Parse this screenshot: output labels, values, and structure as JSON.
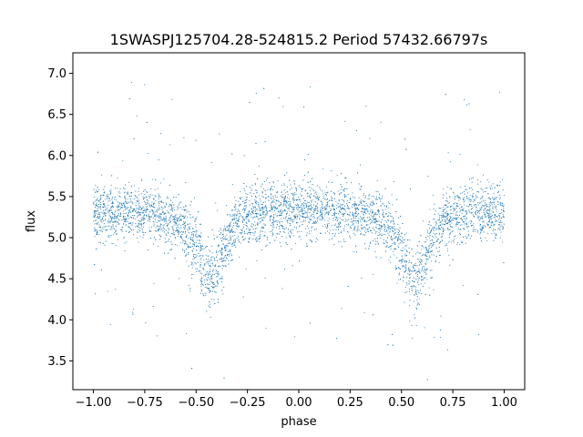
{
  "chart_data": {
    "type": "scatter",
    "title": "1SWASPJ125704.28-524815.2 Period 57432.66797s",
    "xlabel": "phase",
    "ylabel": "flux",
    "xlim": [
      -1.1,
      1.1
    ],
    "ylim": [
      3.15,
      7.25
    ],
    "xticks": [
      "−1.00",
      "−0.75",
      "−0.50",
      "−0.25",
      "0.00",
      "0.25",
      "0.50",
      "0.75",
      "1.00"
    ],
    "xtick_values": [
      -1.0,
      -0.75,
      -0.5,
      -0.25,
      0.0,
      0.25,
      0.5,
      0.75,
      1.0
    ],
    "yticks": [
      "3.5",
      "4.0",
      "4.5",
      "5.0",
      "5.5",
      "6.0",
      "6.5",
      "7.0"
    ],
    "ytick_values": [
      3.5,
      4.0,
      4.5,
      5.0,
      5.5,
      6.0,
      6.5,
      7.0
    ],
    "grid": false,
    "marker_color": "#1f77b4",
    "series": [
      {
        "x": [
          -1.0,
          -0.9,
          -0.8,
          -0.7,
          -0.6,
          -0.55,
          -0.5,
          -0.45,
          -0.43,
          -0.4,
          -0.35,
          -0.3,
          -0.2,
          -0.1,
          0.0,
          0.1,
          0.2,
          0.3,
          0.4,
          0.45,
          0.5,
          0.55,
          0.57,
          0.6,
          0.65,
          0.7,
          0.8,
          0.9,
          1.0
        ],
        "y": [
          5.3,
          5.3,
          5.3,
          5.3,
          5.2,
          5.1,
          4.85,
          4.55,
          4.45,
          4.6,
          4.95,
          5.2,
          5.3,
          5.3,
          5.35,
          5.3,
          5.3,
          5.3,
          5.2,
          5.1,
          4.85,
          4.5,
          4.45,
          4.6,
          4.95,
          5.2,
          5.3,
          5.3,
          5.3
        ]
      }
    ]
  }
}
